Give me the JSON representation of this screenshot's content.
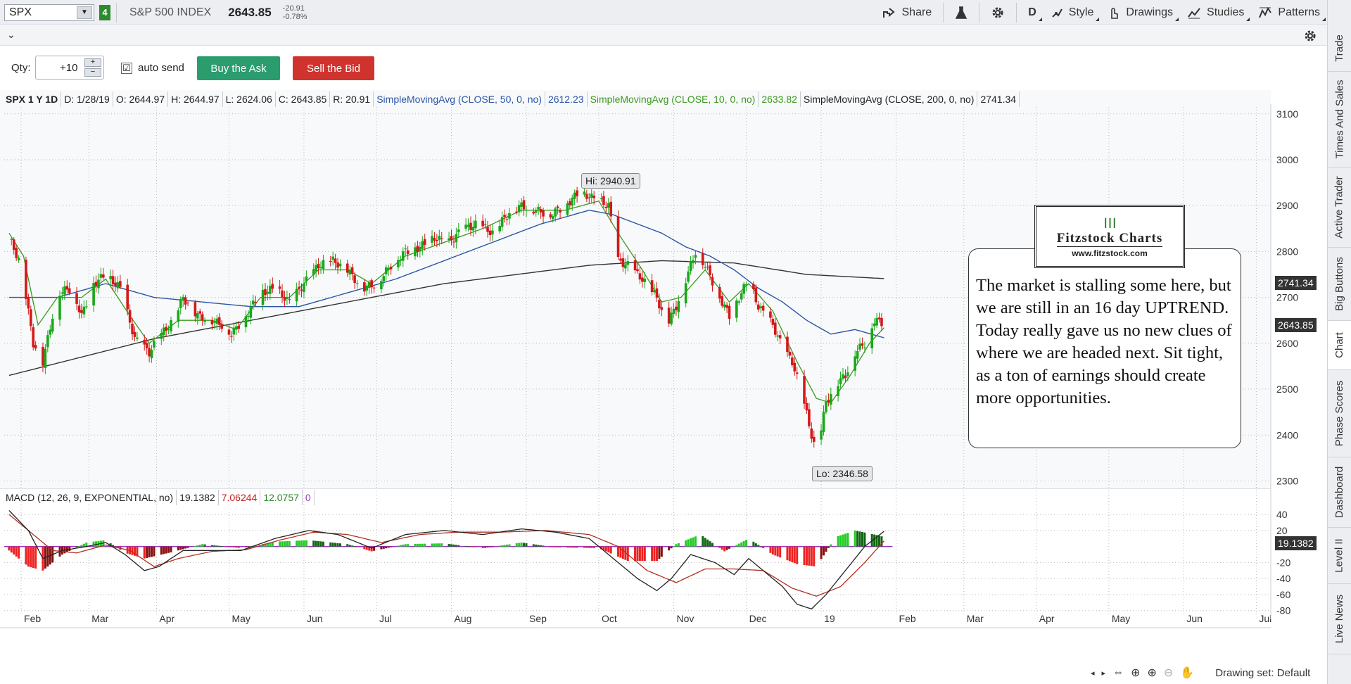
{
  "header": {
    "symbol": "SPX",
    "group": "4",
    "index_name": "S&P 500 INDEX",
    "last": "2643.85",
    "change": "-20.91",
    "change_pct": "-0.78%",
    "buttons": {
      "share": "Share",
      "period": "D",
      "style": "Style",
      "drawings": "Drawings",
      "studies": "Studies",
      "patterns": "Patterns"
    }
  },
  "right_tabs": [
    "Trade",
    "Times And Sales",
    "Active Trader",
    "Big Buttons",
    "Chart",
    "Phase Scores",
    "Dashboard",
    "Level II",
    "Live News"
  ],
  "order": {
    "qty_label": "Qty:",
    "qty_value": "+10",
    "autosend_label": "auto send",
    "autosend_checked": "☑",
    "buy_label": "Buy the Ask",
    "sell_label": "Sell the Bid"
  },
  "price_legend": {
    "symbol": "SPX 1 Y 1D",
    "date": "D: 1/28/19",
    "open": "O: 2644.97",
    "high": "H: 2644.97",
    "low": "L: 2624.06",
    "close": "C: 2643.85",
    "range": "R: 20.91",
    "sma50_label": "SimpleMovingAvg (CLOSE, 50, 0, no)",
    "sma50_value": "2612.23",
    "sma10_label": "SimpleMovingAvg (CLOSE, 10, 0, no)",
    "sma10_value": "2633.82",
    "sma200_label": "SimpleMovingAvg (CLOSE, 200, 0, no)",
    "sma200_value": "2741.34"
  },
  "macd_legend": {
    "label": "MACD (12, 26, 9, EXPONENTIAL, no)",
    "value": "19.1382",
    "avg": "7.06244",
    "diff": "12.0757",
    "zero": "0"
  },
  "annotations": {
    "hi": "Hi: 2940.91",
    "lo": "Lo: 2346.58",
    "note": "The market is stalling some here, but we are still in an 16 day UPTREND. Today really gave us no new clues of where we are headed next.   Sit tight, as a ton of earnings should create more opportunities.",
    "logo_name": "Fitzstock Charts",
    "logo_url": "www.fitzstock.com"
  },
  "badges": {
    "sma200": "2741.34",
    "price": "2643.85",
    "macd": "19.1382"
  },
  "bottom": {
    "drawing_set": "Drawing set: Default"
  },
  "colors": {
    "sma50": "#2b55a8",
    "sma10": "#3a9a1e",
    "sma200": "#333333",
    "up": "#18a818",
    "down": "#d41818",
    "macd_line": "#222222",
    "macd_avg": "#b03020",
    "zero_line": "#9b35c8"
  },
  "chart_data": {
    "type": "candlestick",
    "y_ticks": [
      3100,
      3000,
      2900,
      2800,
      2700,
      2600,
      2500,
      2400,
      2300
    ],
    "ylim": [
      2290,
      3115
    ],
    "x_labels": [
      "Feb",
      "Mar",
      "Apr",
      "May",
      "Jun",
      "Jul",
      "Aug",
      "Sep",
      "Oct",
      "Nov",
      "Dec",
      "19",
      "Feb",
      "Mar",
      "Apr",
      "May",
      "Jun",
      "Jul"
    ],
    "x_label_days": [
      5,
      33,
      61,
      91,
      122,
      152,
      183,
      214,
      244,
      275,
      305,
      336,
      367,
      395,
      425,
      455,
      486,
      516
    ],
    "last_day": 362,
    "close_anchors": [
      [
        0,
        2830
      ],
      [
        5,
        2770
      ],
      [
        10,
        2600
      ],
      [
        14,
        2560
      ],
      [
        20,
        2710
      ],
      [
        26,
        2720
      ],
      [
        30,
        2660
      ],
      [
        35,
        2730
      ],
      [
        40,
        2750
      ],
      [
        46,
        2720
      ],
      [
        52,
        2610
      ],
      [
        58,
        2580
      ],
      [
        63,
        2620
      ],
      [
        68,
        2650
      ],
      [
        72,
        2700
      ],
      [
        78,
        2660
      ],
      [
        84,
        2650
      ],
      [
        88,
        2640
      ],
      [
        92,
        2620
      ],
      [
        98,
        2660
      ],
      [
        104,
        2710
      ],
      [
        110,
        2720
      ],
      [
        116,
        2690
      ],
      [
        122,
        2730
      ],
      [
        128,
        2770
      ],
      [
        134,
        2780
      ],
      [
        140,
        2760
      ],
      [
        146,
        2720
      ],
      [
        152,
        2730
      ],
      [
        158,
        2770
      ],
      [
        164,
        2800
      ],
      [
        170,
        2810
      ],
      [
        176,
        2830
      ],
      [
        182,
        2820
      ],
      [
        188,
        2850
      ],
      [
        194,
        2860
      ],
      [
        200,
        2840
      ],
      [
        206,
        2880
      ],
      [
        212,
        2900
      ],
      [
        218,
        2890
      ],
      [
        224,
        2880
      ],
      [
        230,
        2900
      ],
      [
        236,
        2930
      ],
      [
        242,
        2915
      ],
      [
        248,
        2900
      ],
      [
        252,
        2780
      ],
      [
        256,
        2770
      ],
      [
        262,
        2740
      ],
      [
        268,
        2700
      ],
      [
        272,
        2640
      ],
      [
        276,
        2680
      ],
      [
        280,
        2740
      ],
      [
        284,
        2800
      ],
      [
        288,
        2770
      ],
      [
        294,
        2700
      ],
      [
        298,
        2660
      ],
      [
        302,
        2700
      ],
      [
        306,
        2740
      ],
      [
        310,
        2680
      ],
      [
        316,
        2640
      ],
      [
        320,
        2590
      ],
      [
        324,
        2560
      ],
      [
        328,
        2490
      ],
      [
        332,
        2400
      ],
      [
        334,
        2360
      ],
      [
        338,
        2470
      ],
      [
        342,
        2510
      ],
      [
        346,
        2530
      ],
      [
        350,
        2580
      ],
      [
        354,
        2600
      ],
      [
        358,
        2650
      ],
      [
        362,
        2643.85
      ]
    ],
    "sma50_anchors": [
      [
        0,
        2700
      ],
      [
        20,
        2700
      ],
      [
        40,
        2730
      ],
      [
        60,
        2700
      ],
      [
        80,
        2690
      ],
      [
        100,
        2680
      ],
      [
        120,
        2680
      ],
      [
        140,
        2710
      ],
      [
        160,
        2740
      ],
      [
        180,
        2780
      ],
      [
        200,
        2820
      ],
      [
        220,
        2860
      ],
      [
        240,
        2890
      ],
      [
        250,
        2880
      ],
      [
        260,
        2860
      ],
      [
        270,
        2840
      ],
      [
        280,
        2810
      ],
      [
        290,
        2790
      ],
      [
        300,
        2760
      ],
      [
        310,
        2720
      ],
      [
        320,
        2690
      ],
      [
        330,
        2650
      ],
      [
        340,
        2620
      ],
      [
        350,
        2630
      ],
      [
        362,
        2612
      ]
    ],
    "sma10_anchors": [
      [
        0,
        2840
      ],
      [
        6,
        2790
      ],
      [
        12,
        2640
      ],
      [
        20,
        2700
      ],
      [
        30,
        2700
      ],
      [
        40,
        2740
      ],
      [
        50,
        2660
      ],
      [
        58,
        2600
      ],
      [
        70,
        2650
      ],
      [
        84,
        2650
      ],
      [
        94,
        2630
      ],
      [
        104,
        2700
      ],
      [
        116,
        2700
      ],
      [
        128,
        2760
      ],
      [
        140,
        2760
      ],
      [
        150,
        2730
      ],
      [
        164,
        2790
      ],
      [
        180,
        2820
      ],
      [
        196,
        2850
      ],
      [
        212,
        2890
      ],
      [
        230,
        2890
      ],
      [
        244,
        2910
      ],
      [
        252,
        2840
      ],
      [
        262,
        2760
      ],
      [
        270,
        2690
      ],
      [
        278,
        2700
      ],
      [
        288,
        2760
      ],
      [
        298,
        2690
      ],
      [
        306,
        2730
      ],
      [
        316,
        2670
      ],
      [
        326,
        2560
      ],
      [
        334,
        2480
      ],
      [
        340,
        2470
      ],
      [
        348,
        2530
      ],
      [
        356,
        2600
      ],
      [
        362,
        2634
      ]
    ],
    "sma200_anchors": [
      [
        0,
        2530
      ],
      [
        60,
        2610
      ],
      [
        120,
        2670
      ],
      [
        180,
        2730
      ],
      [
        240,
        2770
      ],
      [
        270,
        2780
      ],
      [
        300,
        2775
      ],
      [
        330,
        2750
      ],
      [
        362,
        2741
      ]
    ],
    "macd": {
      "ylim": [
        -82,
        48
      ],
      "y_ticks": [
        40,
        20,
        0,
        -20,
        -40,
        -60,
        -80
      ],
      "macd_anchors": [
        [
          0,
          45
        ],
        [
          8,
          20
        ],
        [
          14,
          -15
        ],
        [
          22,
          -5
        ],
        [
          32,
          0
        ],
        [
          40,
          5
        ],
        [
          48,
          -10
        ],
        [
          56,
          -30
        ],
        [
          62,
          -25
        ],
        [
          72,
          -5
        ],
        [
          84,
          -5
        ],
        [
          96,
          -5
        ],
        [
          110,
          10
        ],
        [
          124,
          20
        ],
        [
          136,
          15
        ],
        [
          150,
          -2
        ],
        [
          164,
          15
        ],
        [
          180,
          20
        ],
        [
          196,
          15
        ],
        [
          212,
          22
        ],
        [
          226,
          18
        ],
        [
          240,
          10
        ],
        [
          250,
          -15
        ],
        [
          260,
          -40
        ],
        [
          268,
          -55
        ],
        [
          274,
          -40
        ],
        [
          282,
          -10
        ],
        [
          292,
          -20
        ],
        [
          300,
          -35
        ],
        [
          306,
          -15
        ],
        [
          312,
          -30
        ],
        [
          320,
          -50
        ],
        [
          326,
          -72
        ],
        [
          332,
          -78
        ],
        [
          338,
          -60
        ],
        [
          346,
          -30
        ],
        [
          354,
          0
        ],
        [
          362,
          19
        ]
      ],
      "avg_anchors": [
        [
          0,
          40
        ],
        [
          10,
          15
        ],
        [
          18,
          -5
        ],
        [
          28,
          -8
        ],
        [
          40,
          2
        ],
        [
          50,
          -5
        ],
        [
          60,
          -25
        ],
        [
          70,
          -15
        ],
        [
          84,
          -6
        ],
        [
          98,
          -4
        ],
        [
          112,
          8
        ],
        [
          126,
          18
        ],
        [
          140,
          15
        ],
        [
          154,
          5
        ],
        [
          170,
          15
        ],
        [
          186,
          18
        ],
        [
          204,
          18
        ],
        [
          222,
          20
        ],
        [
          240,
          15
        ],
        [
          252,
          0
        ],
        [
          264,
          -30
        ],
        [
          276,
          -45
        ],
        [
          288,
          -28
        ],
        [
          300,
          -28
        ],
        [
          312,
          -30
        ],
        [
          324,
          -52
        ],
        [
          334,
          -62
        ],
        [
          344,
          -50
        ],
        [
          354,
          -20
        ],
        [
          362,
          7
        ]
      ],
      "hist_anchors": [
        [
          0,
          -5
        ],
        [
          8,
          -25
        ],
        [
          14,
          -30
        ],
        [
          22,
          -10
        ],
        [
          32,
          5
        ],
        [
          40,
          8
        ],
        [
          48,
          -8
        ],
        [
          56,
          -15
        ],
        [
          66,
          -8
        ],
        [
          80,
          3
        ],
        [
          96,
          -2
        ],
        [
          110,
          6
        ],
        [
          124,
          8
        ],
        [
          140,
          3
        ],
        [
          150,
          -6
        ],
        [
          164,
          3
        ],
        [
          180,
          4
        ],
        [
          196,
          -2
        ],
        [
          212,
          5
        ],
        [
          226,
          -1
        ],
        [
          244,
          -2
        ],
        [
          256,
          -18
        ],
        [
          268,
          -18
        ],
        [
          276,
          3
        ],
        [
          286,
          15
        ],
        [
          296,
          -6
        ],
        [
          306,
          10
        ],
        [
          316,
          -10
        ],
        [
          326,
          -22
        ],
        [
          334,
          -25
        ],
        [
          342,
          12
        ],
        [
          350,
          20
        ],
        [
          358,
          15
        ],
        [
          362,
          12
        ]
      ]
    }
  }
}
